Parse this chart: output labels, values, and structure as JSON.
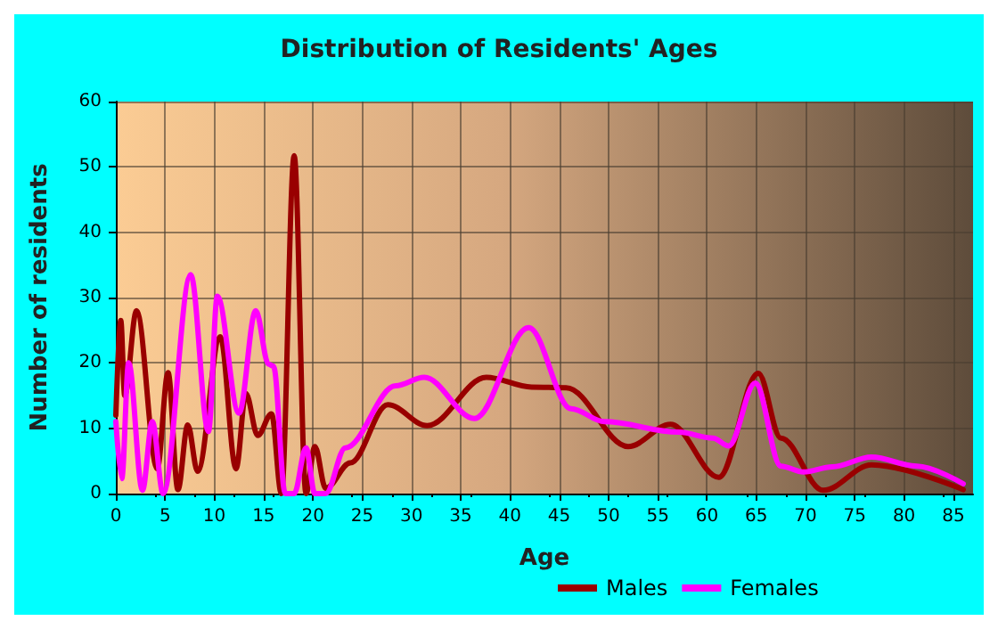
{
  "chart_data": {
    "type": "line",
    "title": "Distribution of Residents' Ages",
    "xlabel": "Age",
    "ylabel": "Number of residents",
    "xlim": [
      0,
      87
    ],
    "xticks": [
      0,
      5,
      10,
      15,
      20,
      25,
      30,
      35,
      40,
      45,
      50,
      55,
      60,
      65,
      70,
      75,
      80,
      85
    ],
    "ylim": [
      0,
      60
    ],
    "yticks": [
      0,
      10,
      20,
      30,
      40,
      50,
      60
    ],
    "grid": true,
    "legend": "bottom",
    "marker": "none",
    "line_style": "solid",
    "series": [
      {
        "name": "Males",
        "color": "#990000",
        "x": [
          0,
          0.5,
          0.9,
          2.1,
          4.2,
          5.3,
          6.3,
          7.3,
          8.3,
          10.6,
          12.2,
          13.2,
          14.4,
          15.8,
          16.8,
          18.1,
          19.3,
          20.2,
          21.3,
          23.8,
          27.6,
          31.6,
          37.6,
          42.2,
          45.7,
          52,
          56.3,
          61.2,
          65.2,
          67.5,
          71.8,
          76.7,
          86
        ],
        "values": [
          12,
          26.5,
          15,
          28,
          3.8,
          18.5,
          0.6,
          10.5,
          3.4,
          24,
          3.8,
          15.3,
          8.9,
          12.2,
          0,
          51.7,
          0,
          7.2,
          0.8,
          4.7,
          13.6,
          10.4,
          17.8,
          16.3,
          16.2,
          7.2,
          10.6,
          2.5,
          18.4,
          8.5,
          0.5,
          4.4,
          0.6
        ]
      },
      {
        "name": "Females",
        "color": "#ff00ff",
        "x": [
          0,
          0.6,
          1.3,
          2.7,
          3.7,
          4.8,
          7.6,
          9.4,
          10.3,
          12.5,
          14.2,
          15.5,
          16,
          17.2,
          18.1,
          19.3,
          20.2,
          21.3,
          23.3,
          28.4,
          31.3,
          36.4,
          41.9,
          46.2,
          49.6,
          57.1,
          60.6,
          62.2,
          64.9,
          67.5,
          69.8,
          72.7,
          76.7,
          81.3,
          86
        ],
        "values": [
          11,
          2.3,
          20,
          0.5,
          11,
          0,
          33.5,
          9.5,
          30.2,
          12.3,
          28,
          19.8,
          19.5,
          0,
          0,
          7,
          0,
          0,
          7,
          16.5,
          17.8,
          11.5,
          25.4,
          13,
          11,
          9.4,
          8.5,
          7.3,
          16.9,
          4.2,
          3.3,
          4.1,
          5.6,
          4.2,
          1.5
        ]
      }
    ]
  }
}
